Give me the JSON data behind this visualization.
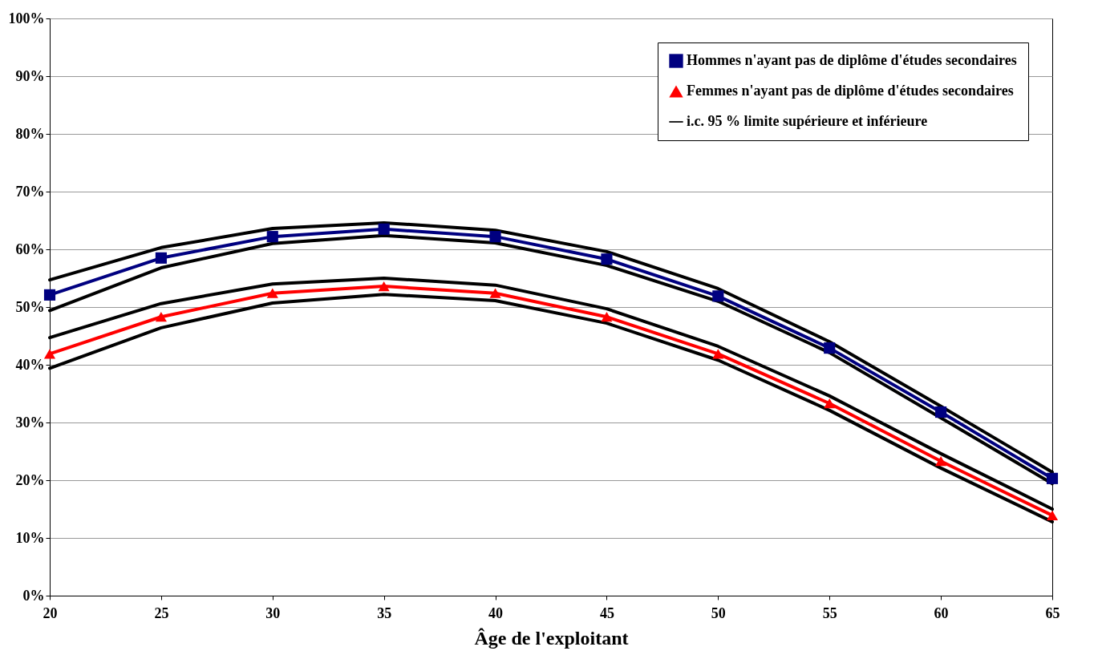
{
  "chart_data": {
    "type": "line",
    "xlabel": "Âge de l'exploitant",
    "x": [
      20,
      25,
      30,
      35,
      40,
      45,
      50,
      55,
      60,
      65
    ],
    "xlim": [
      20,
      65
    ],
    "xticks": [
      20,
      25,
      30,
      35,
      40,
      45,
      50,
      55,
      60,
      65
    ],
    "ylim": [
      0,
      100
    ],
    "yticks": [
      {
        "value": 0,
        "label": "0%"
      },
      {
        "value": 10,
        "label": "10%"
      },
      {
        "value": 20,
        "label": "20%"
      },
      {
        "value": 30,
        "label": "30%"
      },
      {
        "value": 40,
        "label": "40%"
      },
      {
        "value": 50,
        "label": "50%"
      },
      {
        "value": 60,
        "label": "60%"
      },
      {
        "value": 70,
        "label": "70%"
      },
      {
        "value": 80,
        "label": "80%"
      },
      {
        "value": 90,
        "label": "90%"
      },
      {
        "value": 100,
        "label": "100%"
      }
    ],
    "grid": "y",
    "legend": "top right",
    "series": [
      {
        "name": "Hommes n'ayant pas de diplôme d'études secondaires",
        "color": "#000080",
        "marker": "square",
        "values": [
          52.1,
          58.5,
          62.2,
          63.5,
          62.2,
          58.3,
          51.9,
          42.9,
          31.8,
          20.3
        ]
      },
      {
        "name": "Femmes n'ayant pas de diplôme d'études secondaires",
        "color": "#ff0000",
        "marker": "triangle",
        "values": [
          41.9,
          48.3,
          52.4,
          53.6,
          52.4,
          48.3,
          41.9,
          33.3,
          23.3,
          13.9
        ]
      },
      {
        "name": "i.c. 95 % limite supérieure et inférieure",
        "color": "#000000",
        "marker": "none",
        "values": [
          54.7,
          60.3,
          63.6,
          64.6,
          63.3,
          59.6,
          53.2,
          44.0,
          32.8,
          21.4
        ]
      },
      {
        "color": "#000000",
        "marker": "none",
        "values": [
          49.4,
          56.8,
          61.0,
          62.4,
          61.1,
          57.2,
          51.0,
          42.1,
          30.8,
          19.4
        ]
      },
      {
        "color": "#000000",
        "marker": "none",
        "values": [
          44.7,
          50.6,
          54.0,
          55.0,
          53.8,
          49.7,
          43.2,
          34.6,
          24.6,
          15.0
        ]
      },
      {
        "color": "#000000",
        "marker": "none",
        "values": [
          39.4,
          46.4,
          50.7,
          52.2,
          51.1,
          47.2,
          40.8,
          32.1,
          22.1,
          12.8
        ]
      }
    ]
  }
}
